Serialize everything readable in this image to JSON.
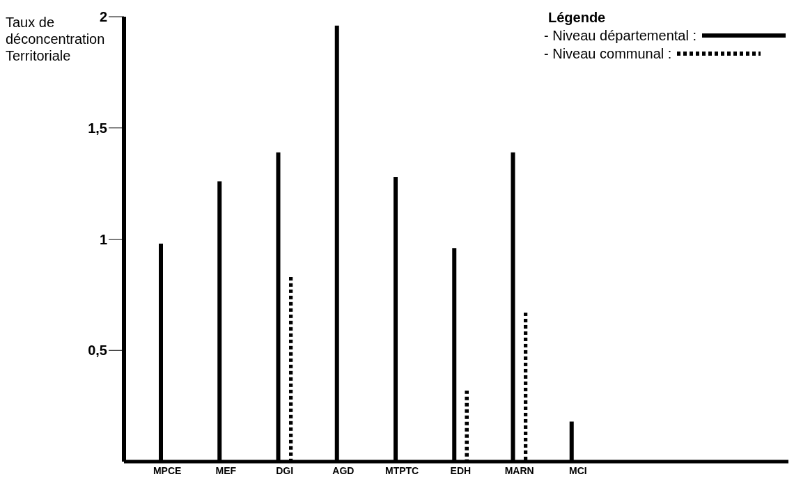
{
  "chart_data": {
    "type": "bar",
    "ylabel": "Taux de déconcentration Territoriale",
    "legend_title": "Légende",
    "legend": "top right",
    "categories": [
      "MPCE",
      "MEF",
      "DGI",
      "AGD",
      "MTPTC",
      "EDH",
      "MARN",
      "MCI"
    ],
    "series": [
      {
        "name": "- Niveau départemental :",
        "color": "#000000",
        "line_style": "solid",
        "values": [
          0.98,
          1.26,
          1.39,
          1.96,
          1.28,
          0.96,
          1.39,
          0.18
        ]
      },
      {
        "name": "- Niveau communal :",
        "color": "#000000",
        "line_style": "dotted",
        "values": [
          null,
          null,
          0.83,
          null,
          null,
          0.32,
          0.67,
          null
        ]
      }
    ],
    "ylim": [
      0,
      2
    ],
    "yticks": [
      {
        "value": 0.5,
        "label": "0,5"
      },
      {
        "value": 1,
        "label": "1"
      },
      {
        "value": 1.5,
        "label": "1,5"
      },
      {
        "value": 2,
        "label": "2"
      }
    ],
    "grid": false
  }
}
